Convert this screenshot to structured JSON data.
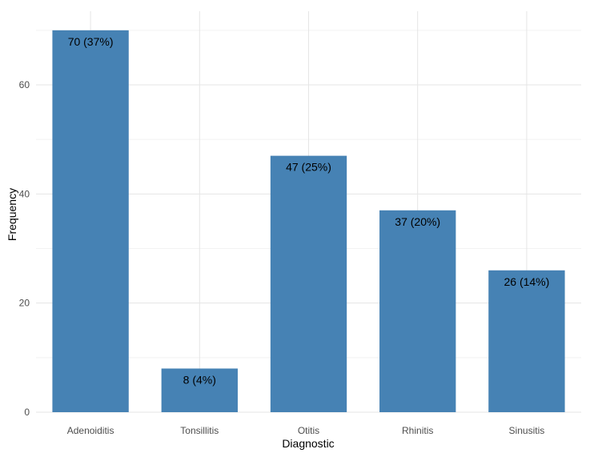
{
  "chart_data": {
    "type": "bar",
    "categories": [
      "Adenoiditis",
      "Tonsillitis",
      "Otitis",
      "Rhinitis",
      "Sinusitis"
    ],
    "values": [
      70,
      8,
      47,
      37,
      26
    ],
    "data_labels": [
      "70 (37%)",
      "8 (4%)",
      "47 (25%)",
      "37 (20%)",
      "26 (14%)"
    ],
    "xlabel": "Diagnostic",
    "ylabel": "Frequency",
    "ylim": [
      0,
      73.5
    ],
    "yticks": [
      0,
      20,
      40,
      60
    ],
    "grid": true,
    "colors": {
      "bar": "#4682B4"
    }
  }
}
